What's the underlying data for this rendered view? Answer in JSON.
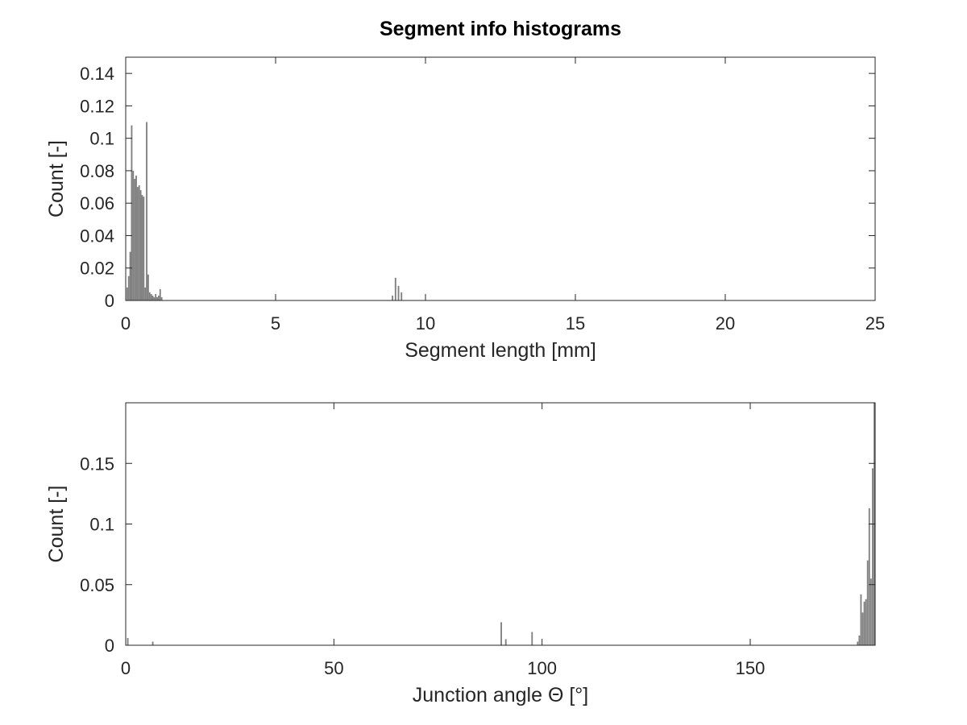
{
  "title": "Segment info histograms",
  "chart_data": [
    {
      "type": "bar",
      "xlabel": "Segment length [mm]",
      "ylabel": "Count [-]",
      "xlim": [
        0,
        25
      ],
      "ylim": [
        0,
        0.15
      ],
      "xticks": [
        0,
        5,
        10,
        15,
        20,
        25
      ],
      "xtick_labels": [
        "0",
        "5",
        "10",
        "15",
        "20",
        "25"
      ],
      "yticks": [
        0,
        0.02,
        0.04,
        0.06,
        0.08,
        0.1,
        0.12,
        0.14
      ],
      "ytick_labels": [
        "0",
        "0.02",
        "0.04",
        "0.06",
        "0.08",
        "0.1",
        "0.12",
        "0.14"
      ],
      "grid": false,
      "bar_color": "#808080",
      "bin_width": 0.05,
      "x": [
        0.05,
        0.1,
        0.15,
        0.2,
        0.25,
        0.3,
        0.35,
        0.4,
        0.45,
        0.5,
        0.55,
        0.6,
        0.65,
        0.7,
        0.75,
        0.8,
        0.85,
        0.9,
        0.95,
        1.0,
        1.05,
        1.1,
        1.15,
        1.2,
        8.9,
        9.0,
        9.1,
        9.2
      ],
      "values": [
        0.008,
        0.015,
        0.03,
        0.108,
        0.08,
        0.075,
        0.077,
        0.07,
        0.071,
        0.068,
        0.065,
        0.064,
        0.008,
        0.11,
        0.016,
        0.005,
        0.004,
        0.003,
        0.002,
        0.004,
        0.002,
        0.003,
        0.007,
        0.002,
        0.003,
        0.014,
        0.009,
        0.005
      ]
    },
    {
      "type": "bar",
      "xlabel": "Junction angle Θ [°]",
      "ylabel": "Count [-]",
      "xlim": [
        0,
        180
      ],
      "ylim": [
        0,
        0.2
      ],
      "xticks": [
        0,
        50,
        100,
        150
      ],
      "xtick_labels": [
        "0",
        "50",
        "100",
        "150"
      ],
      "yticks": [
        0,
        0.05,
        0.1,
        0.15
      ],
      "ytick_labels": [
        "0",
        "0.05",
        "0.1",
        "0.15"
      ],
      "grid": false,
      "bar_color": "#808080",
      "bin_width": 0.36,
      "x": [
        0.5,
        6.5,
        90.2,
        91.3,
        97.6,
        175.8,
        176.2,
        176.6,
        177.0,
        177.4,
        177.8,
        178.2,
        178.6,
        179.0,
        179.4,
        179.8
      ],
      "values": [
        0.006,
        0.003,
        0.019,
        0.005,
        0.011,
        0.003,
        0.008,
        0.042,
        0.027,
        0.036,
        0.038,
        0.07,
        0.113,
        0.055,
        0.146,
        0.2
      ]
    }
  ]
}
